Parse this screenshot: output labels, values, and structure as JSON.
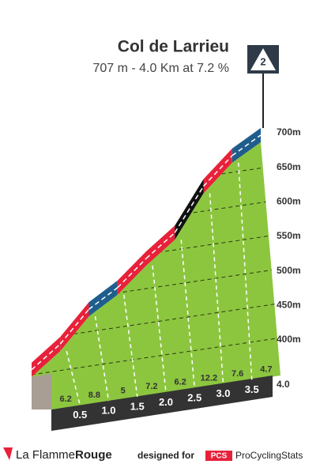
{
  "chart_data": {
    "type": "climb-profile",
    "title": "Col de Larrieu",
    "subtitle": "707 m - 4.0 Km at 7.2 %",
    "category_badge": "2",
    "summit_altitude": 707,
    "x": [
      0.5,
      1,
      1.5,
      2,
      2.5,
      3,
      3.5,
      4
    ],
    "series": [
      {
        "values": [
          6.2,
          8.8,
          5.0,
          7.2,
          6.2,
          12.2,
          7.6,
          4.7
        ],
        "colors": [
          "#e8213a",
          "#e8213a",
          "#1f5e8c",
          "#e8213a",
          "#e8213a",
          "#111111",
          "#e8213a",
          "#1f5e8c"
        ]
      }
    ],
    "xlim": [
      0,
      4
    ],
    "xticks": [
      0.5,
      {
        "value": 1,
        "label": "1.0"
      },
      1.5,
      {
        "value": 2,
        "label": "2.0"
      },
      2.5,
      {
        "value": 3,
        "label": "3.0"
      },
      3.5,
      {
        "value": 4,
        "label": "4.0"
      }
    ],
    "ylim": [
      400,
      700
    ],
    "yticks": [
      {
        "value": 400,
        "label": "400m"
      },
      {
        "value": 450,
        "label": "450m"
      },
      {
        "value": 500,
        "label": "500m"
      },
      {
        "value": 550,
        "label": "550m"
      },
      {
        "value": 600,
        "label": "600m"
      },
      {
        "value": 650,
        "label": "650m"
      },
      {
        "value": 700,
        "label": "700m"
      }
    ]
  },
  "footer": {
    "brand_light": "La Flamme",
    "brand_bold": "Rouge",
    "designed": "designed for",
    "pcs": "PCS",
    "pcs_name": "ProCyclingStats"
  }
}
